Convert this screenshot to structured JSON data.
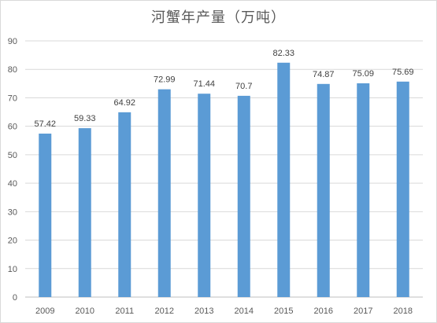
{
  "chart_data": {
    "type": "bar",
    "title": "河蟹年产量（万吨）",
    "categories": [
      "2009",
      "2010",
      "2011",
      "2012",
      "2013",
      "2014",
      "2015",
      "2016",
      "2017",
      "2018"
    ],
    "values": [
      57.42,
      59.33,
      64.92,
      72.99,
      71.44,
      70.7,
      82.33,
      74.87,
      75.09,
      75.69
    ],
    "data_labels": [
      "57.42",
      "59.33",
      "64.92",
      "72.99",
      "71.44",
      "70.7",
      "82.33",
      "74.87",
      "75.09",
      "75.69"
    ],
    "ylim": [
      0,
      90
    ],
    "yticks": [
      "0",
      "10",
      "20",
      "30",
      "40",
      "50",
      "60",
      "70",
      "80",
      "90"
    ],
    "grid": true,
    "bar_color": "#5b9bd5",
    "grid_color": "#d9d9d9"
  }
}
